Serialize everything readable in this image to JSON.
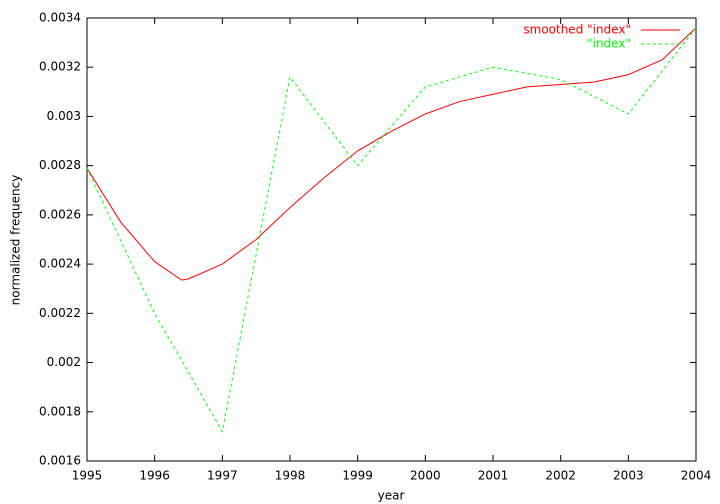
{
  "chart_data": {
    "type": "line",
    "xlabel": "year",
    "ylabel": "normalized frequency",
    "xlim": [
      1995,
      2004
    ],
    "xticks": [
      1995,
      1996,
      1997,
      1998,
      1999,
      2000,
      2001,
      2002,
      2003,
      2004
    ],
    "ylim": [
      0.0016,
      0.0034
    ],
    "yticks": [
      0.0016,
      0.0018,
      0.002,
      0.0022,
      0.0024,
      0.0026,
      0.0028,
      0.003,
      0.0032,
      0.0034
    ],
    "legend": "top-right",
    "series": [
      {
        "name": "smoothed \"index\"",
        "color": "#ff0000",
        "dash": false,
        "x": [
          1995,
          1995.5,
          1996,
          1996.4,
          1996.5,
          1997,
          1997.5,
          1998,
          1998.5,
          1999,
          1999.5,
          2000,
          2000.5,
          2001,
          2001.5,
          2002,
          2002.5,
          2003,
          2003.5,
          2004
        ],
        "values": [
          0.00279,
          0.00257,
          0.00241,
          0.002335,
          0.00234,
          0.0024,
          0.0025,
          0.00263,
          0.00275,
          0.00286,
          0.00294,
          0.00301,
          0.00306,
          0.00309,
          0.00312,
          0.00313,
          0.00314,
          0.00317,
          0.00323,
          0.00336
        ]
      },
      {
        "name": "\"index\"",
        "color": "#00ff00",
        "dash": true,
        "x": [
          1995,
          1996,
          1997,
          1998,
          1999,
          2000,
          2001,
          2002,
          2003,
          2004
        ],
        "values": [
          0.00279,
          0.0022,
          0.00172,
          0.00316,
          0.0028,
          0.00312,
          0.0032,
          0.00315,
          0.00301,
          0.00336
        ]
      }
    ]
  }
}
